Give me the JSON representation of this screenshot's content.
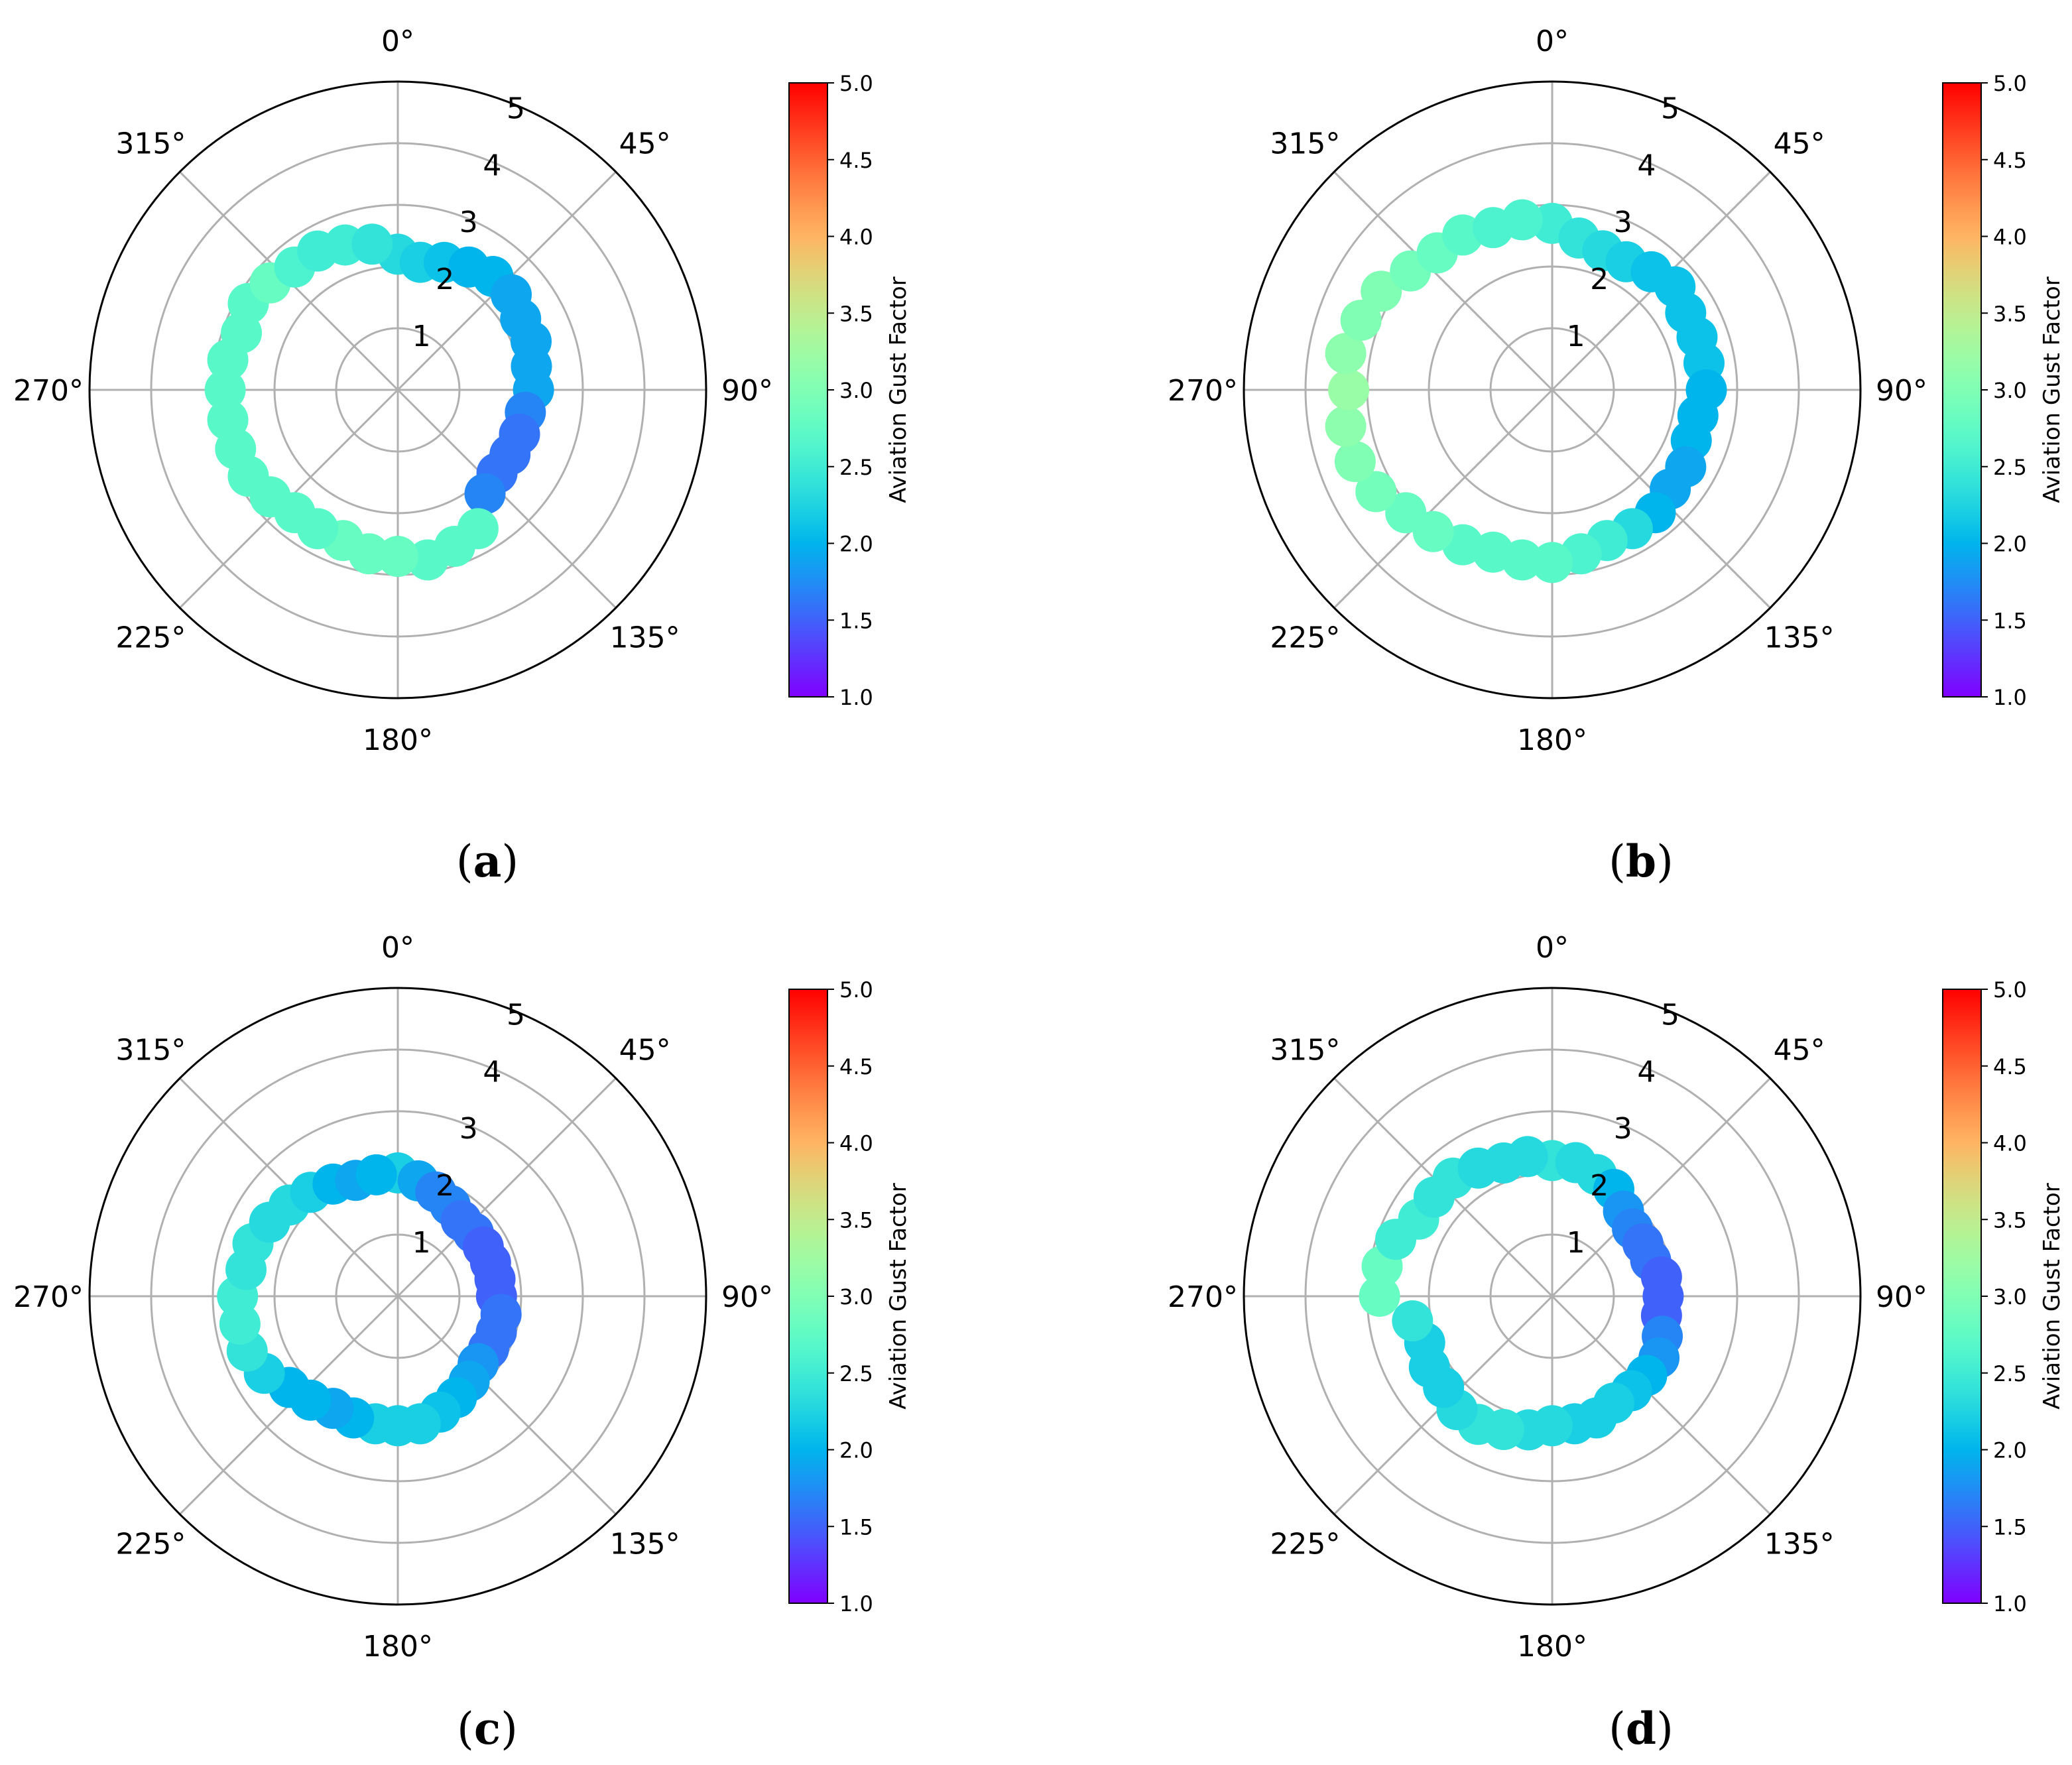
{
  "colorbar": {
    "label": "Aviation Gust Factor",
    "min": 1.0,
    "max": 5.0,
    "ticks": [
      "1.0",
      "1.5",
      "2.0",
      "2.5",
      "3.0",
      "3.5",
      "4.0",
      "4.5",
      "5.0"
    ],
    "colormap": "rainbow"
  },
  "colors": {
    "grid": "#b0b0b0",
    "axis": "#000000",
    "background": "#ffffff"
  },
  "chart_data": [
    {
      "type": "scatter",
      "projection": "polar",
      "caption": "(a)",
      "theta_direction": "clockwise",
      "theta_zero": "top",
      "theta_tick_labels": [
        "0°",
        "45°",
        "90°",
        "135°",
        "180°",
        "225°",
        "270°",
        "315°"
      ],
      "radial_ticks": [
        "1",
        "2",
        "3",
        "4",
        "5"
      ],
      "rlim": [
        0,
        5
      ],
      "theta_deg": [
        0,
        10,
        20,
        30,
        40,
        50,
        60,
        70,
        80,
        90,
        100,
        110,
        120,
        130,
        140,
        150,
        160,
        170,
        180,
        190,
        200,
        210,
        220,
        230,
        240,
        250,
        260,
        270,
        280,
        290,
        300,
        310,
        320,
        330,
        340,
        350
      ],
      "r": [
        2.2,
        2.1,
        2.2,
        2.3,
        2.4,
        2.4,
        2.3,
        2.3,
        2.2,
        2.2,
        2.1,
        2.1,
        2.1,
        2.1,
        2.2,
        2.6,
        2.7,
        2.8,
        2.7,
        2.7,
        2.6,
        2.6,
        2.6,
        2.7,
        2.8,
        2.8,
        2.8,
        2.8,
        2.8,
        2.7,
        2.8,
        2.7,
        2.6,
        2.6,
        2.5,
        2.4
      ],
      "gust_factor": [
        2.3,
        2.2,
        2.1,
        2.0,
        2.0,
        1.9,
        1.9,
        1.9,
        1.9,
        1.9,
        1.7,
        1.6,
        1.6,
        1.6,
        1.7,
        2.7,
        2.7,
        2.7,
        2.8,
        2.8,
        2.8,
        2.7,
        2.7,
        2.7,
        2.7,
        2.7,
        2.7,
        2.7,
        2.7,
        2.7,
        2.7,
        2.8,
        2.6,
        2.5,
        2.5,
        2.4
      ]
    },
    {
      "type": "scatter",
      "projection": "polar",
      "caption": "(b)",
      "theta_direction": "clockwise",
      "theta_zero": "top",
      "theta_tick_labels": [
        "0°",
        "45°",
        "90°",
        "135°",
        "180°",
        "225°",
        "270°",
        "315°"
      ],
      "radial_ticks": [
        "1",
        "2",
        "3",
        "4",
        "5"
      ],
      "rlim": [
        0,
        5
      ],
      "theta_deg": [
        0,
        10,
        20,
        30,
        40,
        50,
        60,
        70,
        80,
        90,
        100,
        110,
        120,
        130,
        140,
        150,
        160,
        170,
        180,
        190,
        200,
        210,
        220,
        230,
        240,
        250,
        260,
        270,
        280,
        290,
        300,
        310,
        320,
        330,
        340,
        350
      ],
      "r": [
        2.7,
        2.5,
        2.4,
        2.4,
        2.5,
        2.6,
        2.5,
        2.5,
        2.5,
        2.5,
        2.4,
        2.4,
        2.5,
        2.5,
        2.6,
        2.6,
        2.6,
        2.7,
        2.8,
        2.8,
        2.8,
        2.9,
        3.0,
        3.1,
        3.3,
        3.4,
        3.4,
        3.3,
        3.4,
        3.3,
        3.2,
        3.0,
        2.9,
        2.9,
        2.8,
        2.8
      ],
      "gust_factor": [
        2.5,
        2.4,
        2.3,
        2.2,
        2.1,
        2.1,
        2.1,
        2.1,
        2.1,
        2.0,
        2.0,
        2.0,
        1.9,
        1.9,
        2.0,
        2.3,
        2.5,
        2.6,
        2.7,
        2.7,
        2.7,
        2.7,
        2.8,
        2.8,
        2.9,
        3.0,
        3.1,
        3.2,
        3.1,
        3.0,
        3.0,
        2.9,
        2.8,
        2.7,
        2.6,
        2.6
      ]
    },
    {
      "type": "scatter",
      "projection": "polar",
      "caption": "(c)",
      "theta_direction": "clockwise",
      "theta_zero": "top",
      "theta_tick_labels": [
        "0°",
        "45°",
        "90°",
        "135°",
        "180°",
        "225°",
        "270°",
        "315°"
      ],
      "radial_ticks": [
        "1",
        "2",
        "3",
        "4",
        "5"
      ],
      "rlim": [
        0,
        5
      ],
      "theta_deg": [
        0,
        10,
        20,
        30,
        40,
        50,
        60,
        70,
        80,
        90,
        100,
        110,
        120,
        130,
        140,
        150,
        160,
        170,
        180,
        190,
        200,
        210,
        220,
        230,
        240,
        250,
        260,
        270,
        280,
        290,
        300,
        310,
        320,
        330,
        340,
        350
      ],
      "r": [
        2.0,
        1.9,
        1.8,
        1.7,
        1.6,
        1.6,
        1.6,
        1.6,
        1.6,
        1.6,
        1.7,
        1.7,
        1.7,
        1.7,
        1.8,
        1.9,
        2.0,
        2.1,
        2.1,
        2.1,
        2.1,
        2.1,
        2.2,
        2.3,
        2.5,
        2.6,
        2.6,
        2.6,
        2.5,
        2.5,
        2.4,
        2.3,
        2.2,
        2.1,
        2.0,
        2.0
      ],
      "gust_factor": [
        2.2,
        1.9,
        1.7,
        1.7,
        1.6,
        1.6,
        1.5,
        1.5,
        1.5,
        1.5,
        1.6,
        1.6,
        1.6,
        1.8,
        1.9,
        2.0,
        2.1,
        2.2,
        2.2,
        2.2,
        2.0,
        1.9,
        2.0,
        2.0,
        2.2,
        2.4,
        2.5,
        2.5,
        2.4,
        2.4,
        2.3,
        2.3,
        2.2,
        2.0,
        1.9,
        2.0
      ]
    },
    {
      "type": "scatter",
      "projection": "polar",
      "caption": "(d)",
      "theta_direction": "clockwise",
      "theta_zero": "top",
      "theta_tick_labels": [
        "0°",
        "45°",
        "90°",
        "135°",
        "180°",
        "225°",
        "270°",
        "315°"
      ],
      "radial_ticks": [
        "1",
        "2",
        "3",
        "4",
        "5"
      ],
      "rlim": [
        0,
        5
      ],
      "theta_deg": [
        0,
        10,
        20,
        30,
        40,
        50,
        60,
        70,
        80,
        90,
        100,
        110,
        120,
        130,
        140,
        150,
        160,
        170,
        180,
        190,
        200,
        210,
        220,
        230,
        240,
        250,
        260,
        270,
        280,
        290,
        300,
        310,
        320,
        330,
        340,
        350
      ],
      "r": [
        2.2,
        2.2,
        2.1,
        2.0,
        1.8,
        1.7,
        1.7,
        1.7,
        1.8,
        1.8,
        1.8,
        1.9,
        2.0,
        2.0,
        2.0,
        2.0,
        2.1,
        2.1,
        2.1,
        2.2,
        2.3,
        2.4,
        2.4,
        2.3,
        2.3,
        2.2,
        2.3,
        2.8,
        2.8,
        2.7,
        2.5,
        2.5,
        2.5,
        2.4,
        2.3,
        2.3
      ],
      "gust_factor": [
        2.4,
        2.3,
        2.3,
        2.0,
        1.8,
        1.7,
        1.6,
        1.6,
        1.5,
        1.5,
        1.5,
        1.7,
        1.8,
        2.0,
        2.1,
        2.2,
        2.2,
        2.2,
        2.3,
        2.3,
        2.4,
        2.4,
        2.3,
        2.2,
        2.2,
        2.2,
        2.4,
        2.8,
        2.8,
        2.5,
        2.5,
        2.4,
        2.4,
        2.3,
        2.3,
        2.3
      ]
    }
  ]
}
